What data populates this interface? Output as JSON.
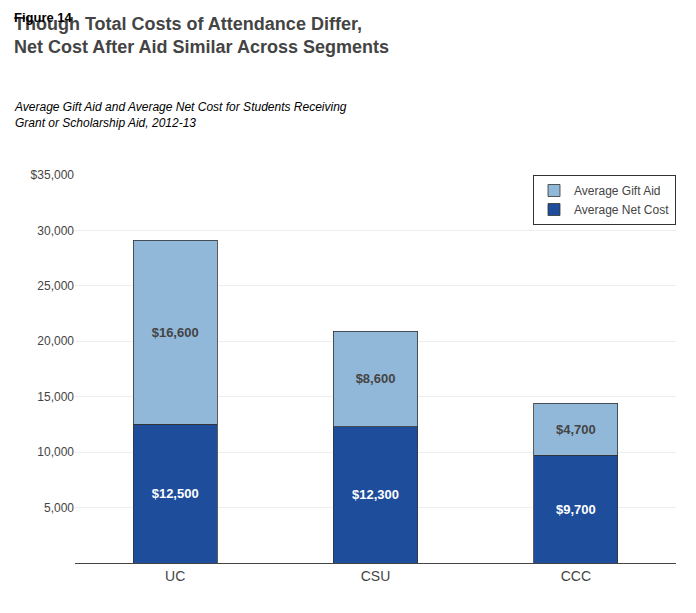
{
  "chart_data": {
    "type": "bar",
    "stacked": true,
    "title": "Though Total Costs of Attendance Differ,\nNet Cost After Aid Similar Across Segments",
    "subtitle": "Average Gift Aid and Average Net Cost for Students Receiving\nGrant or Scholarship Aid, 2012-13",
    "annotations": [
      {
        "text": "Figure 14"
      }
    ],
    "categories": [
      "UC",
      "CSU",
      "CCC"
    ],
    "series": [
      {
        "name": "Average Net Cost",
        "color": "#1e4d9b",
        "values": [
          12500,
          12300,
          9700
        ],
        "value_labels": [
          "$12,500",
          "$12,300",
          "$9,700"
        ]
      },
      {
        "name": "Average Gift Aid",
        "color": "#92b8d9",
        "values": [
          16600,
          8600,
          4700
        ],
        "value_labels": [
          "$16,600",
          "$8,600",
          "$4,700"
        ]
      }
    ],
    "data_labels": true,
    "ylim": [
      0,
      35000
    ],
    "yticks": [
      {
        "value": 0,
        "label": ""
      },
      {
        "value": 5000,
        "label": "5,000"
      },
      {
        "value": 10000,
        "label": "10,000"
      },
      {
        "value": 15000,
        "label": "15,000"
      },
      {
        "value": 20000,
        "label": "20,000"
      },
      {
        "value": 25000,
        "label": "25,000"
      },
      {
        "value": 30000,
        "label": "30,000"
      },
      {
        "value": 35000,
        "label": "$35,000"
      }
    ],
    "grid": true,
    "legend": "upper right"
  }
}
